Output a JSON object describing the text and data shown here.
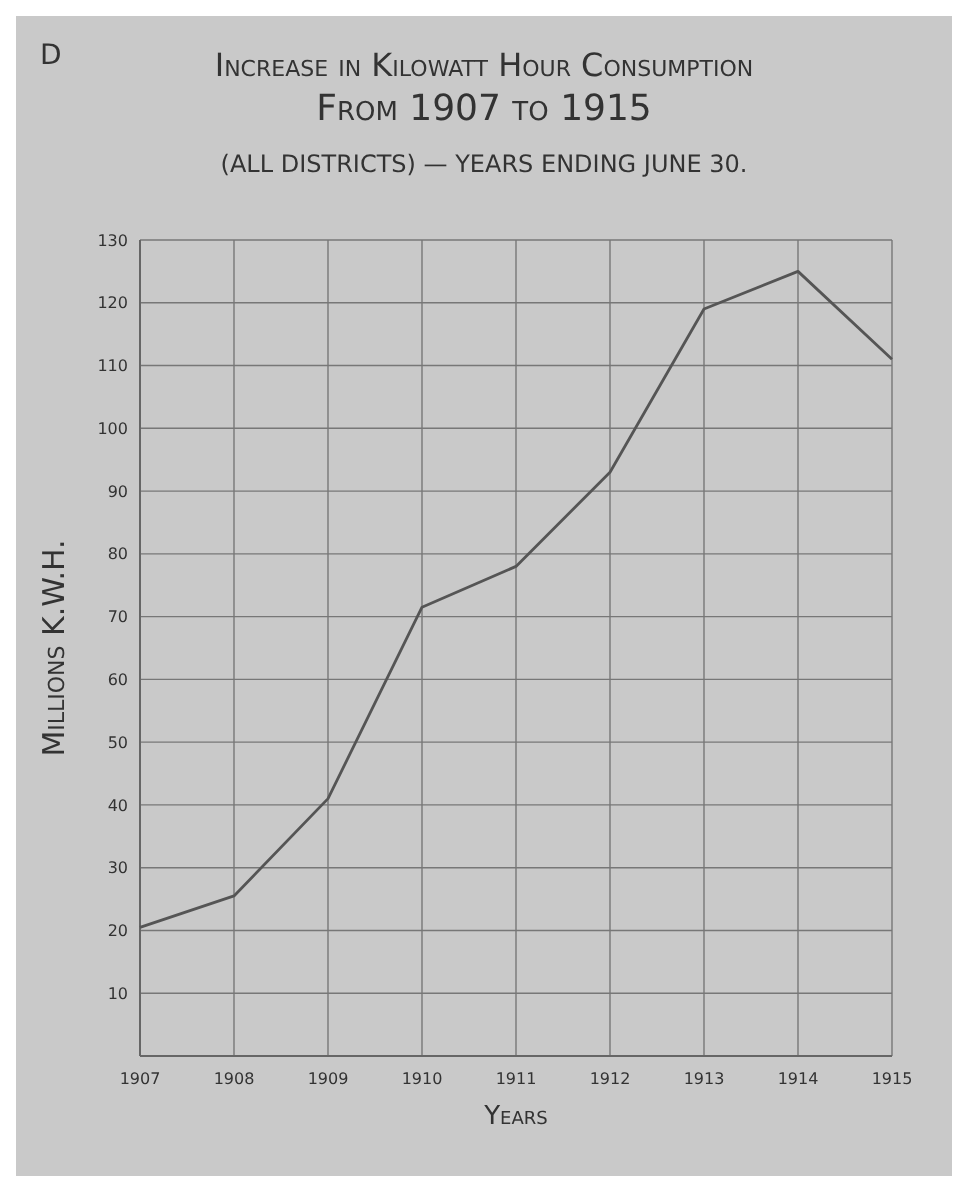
{
  "chart_data": {
    "type": "line",
    "title": "Increase in Kilowatt Hour Consumption From 1907 to 1915",
    "subtitle": "(ALL DISTRICTS) — YEARS ENDING JUNE 30.",
    "xlabel": "Years",
    "ylabel": "Millions K.W.H.",
    "annotations": [
      "D"
    ],
    "categories": [
      "1907",
      "1908",
      "1909",
      "1910",
      "1911",
      "1912",
      "1913",
      "1914",
      "1915"
    ],
    "series": [
      {
        "color": "#555555",
        "values": [
          20.5,
          25.5,
          41,
          71.5,
          78,
          93,
          119,
          125,
          111
        ]
      }
    ],
    "ylim": [
      0,
      130
    ],
    "yticks": [
      10,
      20,
      30,
      40,
      50,
      60,
      70,
      80,
      90,
      100,
      110,
      120,
      130
    ],
    "grid": true,
    "marker": "none",
    "line_style": "solid"
  }
}
